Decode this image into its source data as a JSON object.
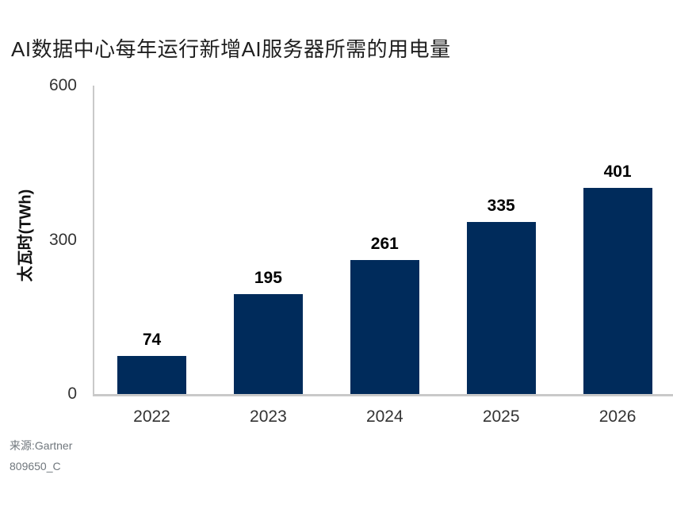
{
  "chart_data": {
    "type": "bar",
    "title": "AI数据中心每年运行新增AI服务器所需的用电量",
    "xlabel": "",
    "ylabel": "太瓦时(TWh)",
    "categories": [
      "2022",
      "2023",
      "2024",
      "2025",
      "2026"
    ],
    "values": [
      74,
      195,
      261,
      335,
      401
    ],
    "yticks": [
      0,
      300,
      600
    ],
    "ylim": [
      0,
      600
    ],
    "grid": false,
    "legend": "none",
    "bar_color": "#002B5B",
    "axis_color": "#c9c9c9",
    "value_labels_shown": true
  },
  "source": {
    "line1": "来源:Gartner",
    "line2": "809650_C"
  }
}
